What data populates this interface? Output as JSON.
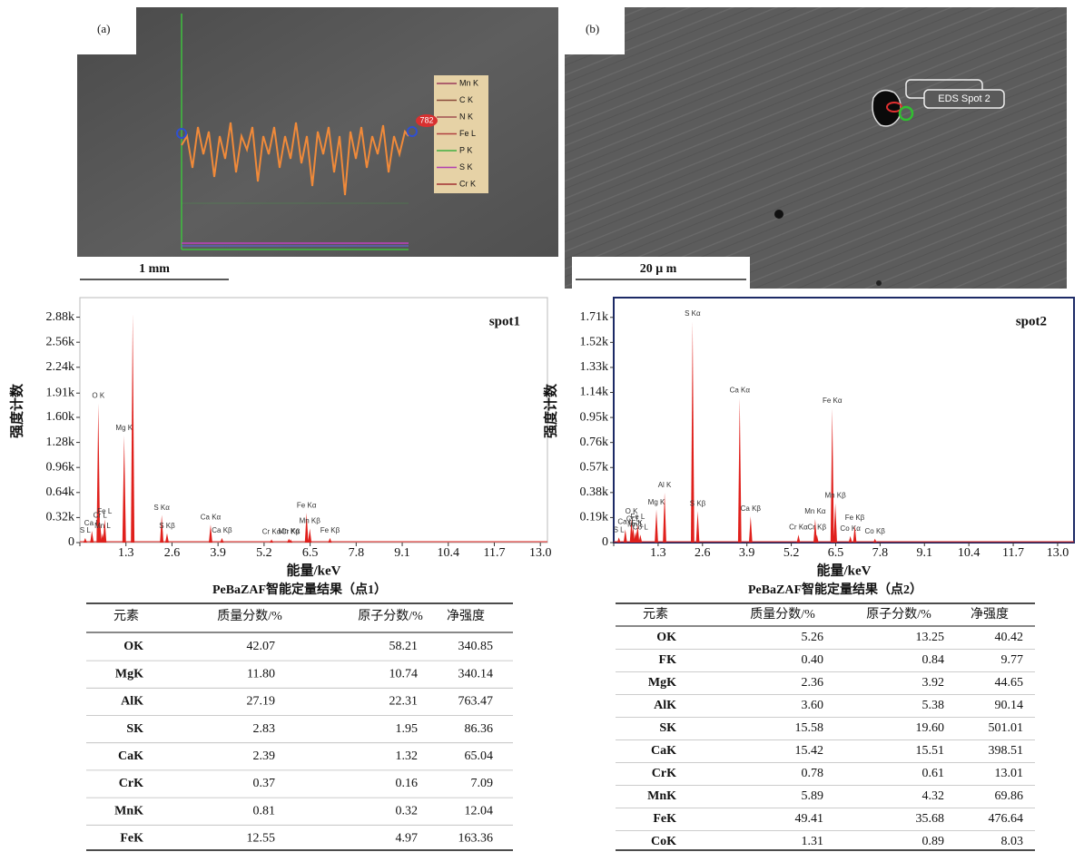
{
  "panels": [
    {
      "label": "(a)",
      "scale_bar": "1 mm",
      "line_scan": {
        "legend": [
          {
            "name": "Mn K",
            "color": "#9a3a5a"
          },
          {
            "name": "C  K",
            "color": "#8a4a3a"
          },
          {
            "name": "N  K",
            "color": "#a05050"
          },
          {
            "name": "Fe L",
            "color": "#b04040"
          },
          {
            "name": "P  K",
            "color": "#40b040"
          },
          {
            "name": "S  K",
            "color": "#b040b0"
          },
          {
            "name": "Cr K",
            "color": "#a03030"
          }
        ],
        "marker": "782"
      }
    },
    {
      "label": "(b)",
      "scale_bar": "20 μ m",
      "spot_label": "EDS Spot 2"
    }
  ],
  "chart_data": [
    {
      "type": "spectrum",
      "annotation": "spot1",
      "x_label": "能量/keV",
      "y_label": "强度计数",
      "color": "#e0201c",
      "xlim": [
        0,
        13.2
      ],
      "xticks": [
        0,
        1.3,
        2.6,
        3.9,
        5.2,
        6.5,
        7.8,
        9.1,
        10.4,
        11.7,
        {
          "value": 13,
          "label": "13.0"
        }
      ],
      "ylim": [
        0,
        3130
      ],
      "yticks": [
        0,
        {
          "value": 320,
          "label": "0.32k"
        },
        {
          "value": 640,
          "label": "0.64k"
        },
        {
          "value": 960,
          "label": "0.96k"
        },
        {
          "value": 1280,
          "label": "1.28k"
        },
        {
          "value": 1600,
          "label": "1.60k"
        },
        {
          "value": 1910,
          "label": "1.91k"
        },
        {
          "value": 2240,
          "label": "2.24k"
        },
        {
          "value": 2560,
          "label": "2.56k"
        },
        {
          "value": 2880,
          "label": "2.88k"
        }
      ],
      "peaks": [
        {
          "label": "S L",
          "energy": 0.15,
          "counts": 60
        },
        {
          "label": "Ca L",
          "energy": 0.34,
          "counts": 150
        },
        {
          "label": "O K",
          "energy": 0.52,
          "counts": 1780
        },
        {
          "label": "Cr L",
          "energy": 0.57,
          "counts": 250
        },
        {
          "label": "Mn L",
          "energy": 0.64,
          "counts": 120
        },
        {
          "label": "Fe L",
          "energy": 0.7,
          "counts": 300
        },
        {
          "label": "Mg K",
          "energy": 1.25,
          "counts": 1370
        },
        {
          "label": null,
          "energy": 1.49,
          "counts": 2920
        },
        {
          "label": "S Kα",
          "energy": 2.31,
          "counts": 350
        },
        {
          "label": "S Kβ",
          "energy": 2.46,
          "counts": 120
        },
        {
          "label": "Ca Kα",
          "energy": 3.69,
          "counts": 230
        },
        {
          "label": "Ca Kβ",
          "energy": 4.01,
          "counts": 60
        },
        {
          "label": "Cr Kα",
          "energy": 5.41,
          "counts": 40
        },
        {
          "label": "Mn Kα",
          "energy": 5.9,
          "counts": 50
        },
        {
          "label": "Cr Kβ",
          "energy": 5.95,
          "counts": 40
        },
        {
          "label": "Fe Kα",
          "energy": 6.4,
          "counts": 380
        },
        {
          "label": "Mn Kβ",
          "energy": 6.49,
          "counts": 180
        },
        {
          "label": "Fe Kβ",
          "energy": 7.06,
          "counts": 60
        }
      ]
    },
    {
      "type": "spectrum",
      "annotation": "spot2",
      "x_label": "能量/keV",
      "y_label": "强度计数",
      "color": "#e0201c",
      "xlim": [
        0,
        13.48
      ],
      "xticks": [
        0,
        1.3,
        2.6,
        3.9,
        5.2,
        6.5,
        7.8,
        9.1,
        10.4,
        11.7,
        {
          "value": 13,
          "label": "13.0"
        }
      ],
      "ylim": [
        0,
        1860
      ],
      "yticks": [
        0,
        {
          "value": 190,
          "label": "0.19k"
        },
        {
          "value": 380,
          "label": "0.38k"
        },
        {
          "value": 570,
          "label": "0.57k"
        },
        {
          "value": 760,
          "label": "0.76k"
        },
        {
          "value": 950,
          "label": "0.95k"
        },
        {
          "value": 1140,
          "label": "1.14k"
        },
        {
          "value": 1330,
          "label": "1.33k"
        },
        {
          "value": 1520,
          "label": "1.52k"
        },
        {
          "value": 1710,
          "label": "1.71k"
        }
      ],
      "peaks": [
        {
          "label": "S L",
          "energy": 0.15,
          "counts": 40
        },
        {
          "label": "Ca L",
          "energy": 0.34,
          "counts": 100
        },
        {
          "label": "O K",
          "energy": 0.52,
          "counts": 180
        },
        {
          "label": "Cr L",
          "energy": 0.57,
          "counts": 120
        },
        {
          "label": "Mn L",
          "energy": 0.64,
          "counts": 80
        },
        {
          "label": "F K",
          "energy": 0.68,
          "counts": 90
        },
        {
          "label": "Fe L",
          "energy": 0.7,
          "counts": 140
        },
        {
          "label": "Co L",
          "energy": 0.78,
          "counts": 60
        },
        {
          "label": "Mg K",
          "energy": 1.25,
          "counts": 250
        },
        {
          "label": "Al K",
          "energy": 1.49,
          "counts": 380
        },
        {
          "label": "S Kα",
          "energy": 2.31,
          "counts": 1680
        },
        {
          "label": "S Kβ",
          "energy": 2.46,
          "counts": 240
        },
        {
          "label": "Ca Kα",
          "energy": 3.69,
          "counts": 1100
        },
        {
          "label": "Ca Kβ",
          "energy": 4.01,
          "counts": 200
        },
        {
          "label": "Cr Kα",
          "energy": 5.41,
          "counts": 60
        },
        {
          "label": "Mn Kα",
          "energy": 5.9,
          "counts": 180
        },
        {
          "label": "Cr Kβ",
          "energy": 5.95,
          "counts": 60
        },
        {
          "label": "Fe Kα",
          "energy": 6.4,
          "counts": 1020
        },
        {
          "label": "Mn Kβ",
          "energy": 6.49,
          "counts": 300
        },
        {
          "label": "Co Kα",
          "energy": 6.93,
          "counts": 50
        },
        {
          "label": "Fe Kβ",
          "energy": 7.06,
          "counts": 130
        },
        {
          "label": "Co Kβ",
          "energy": 7.65,
          "counts": 30
        }
      ]
    }
  ],
  "tables": [
    {
      "title": "PeBaZAF智能定量结果（点1）",
      "columns": [
        "元素",
        "质量分数/%",
        "原子分数/%",
        "净强度"
      ],
      "rows": [
        [
          "OK",
          "42.07",
          "58.21",
          "340.85"
        ],
        [
          "MgK",
          "11.80",
          "10.74",
          "340.14"
        ],
        [
          "AlK",
          "27.19",
          "22.31",
          "763.47"
        ],
        [
          "SK",
          "2.83",
          "1.95",
          "86.36"
        ],
        [
          "CaK",
          "2.39",
          "1.32",
          "65.04"
        ],
        [
          "CrK",
          "0.37",
          "0.16",
          "7.09"
        ],
        [
          "MnK",
          "0.81",
          "0.32",
          "12.04"
        ],
        [
          "FeK",
          "12.55",
          "4.97",
          "163.36"
        ]
      ]
    },
    {
      "title": "PeBaZAF智能定量结果（点2）",
      "columns": [
        "元素",
        "质量分数/%",
        "原子分数/%",
        "净强度"
      ],
      "rows": [
        [
          "OK",
          "5.26",
          "13.25",
          "40.42"
        ],
        [
          "FK",
          "0.40",
          "0.84",
          "9.77"
        ],
        [
          "MgK",
          "2.36",
          "3.92",
          "44.65"
        ],
        [
          "AlK",
          "3.60",
          "5.38",
          "90.14"
        ],
        [
          "SK",
          "15.58",
          "19.60",
          "501.01"
        ],
        [
          "CaK",
          "15.42",
          "15.51",
          "398.51"
        ],
        [
          "CrK",
          "0.78",
          "0.61",
          "13.01"
        ],
        [
          "MnK",
          "5.89",
          "4.32",
          "69.86"
        ],
        [
          "FeK",
          "49.41",
          "35.68",
          "476.64"
        ],
        [
          "CoK",
          "1.31",
          "0.89",
          "8.03"
        ]
      ]
    }
  ]
}
